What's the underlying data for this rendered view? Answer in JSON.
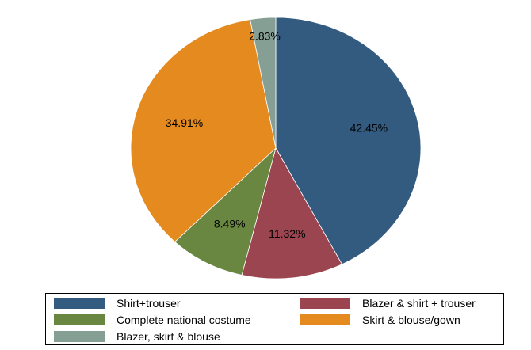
{
  "chart_data": {
    "type": "pie",
    "title": "",
    "slices": [
      {
        "name": "Shirt+trouser",
        "value": 42.45,
        "label": "42.45%",
        "color": "#335b80"
      },
      {
        "name": "Blazer & shirt + trouser",
        "value": 11.32,
        "label": "11.32%",
        "color": "#9b4550"
      },
      {
        "name": "Complete national costume",
        "value": 8.49,
        "label": "8.49%",
        "color": "#6a8741"
      },
      {
        "name": "Skirt & blouse/gown",
        "value": 34.91,
        "label": "34.91%",
        "color": "#e48a1f"
      },
      {
        "name": "Blazer, skirt & blouse",
        "value": 2.83,
        "label": "2.83%",
        "color": "#869f95"
      }
    ],
    "start_angle": "12 o'clock",
    "direction": "clockwise",
    "legend_position": "bottom"
  }
}
